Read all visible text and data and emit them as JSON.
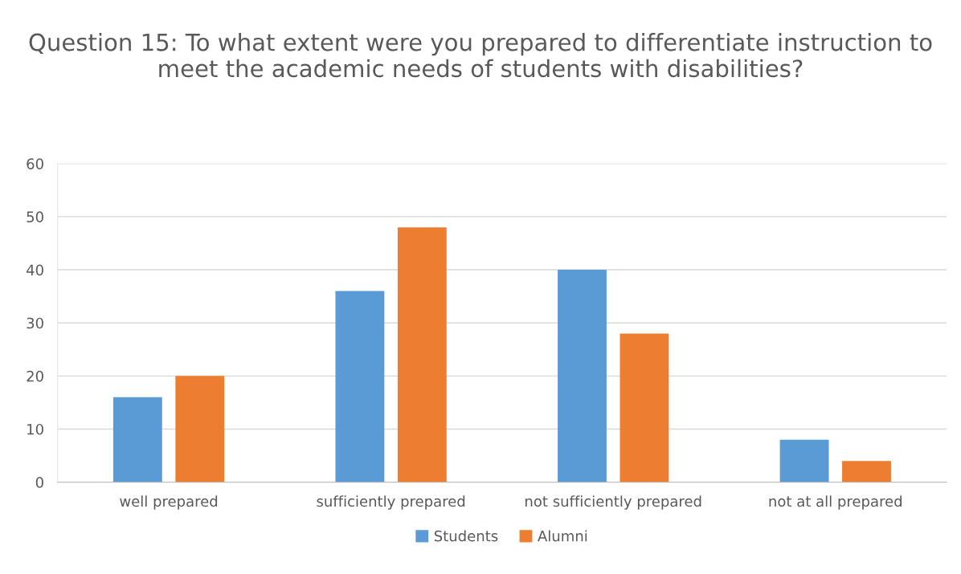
{
  "chart_data": {
    "type": "bar",
    "title": "Question 15: To what extent were you prepared to differentiate instruction to meet the academic needs of students with disabilities?",
    "categories": [
      "well prepared",
      "sufficiently prepared",
      "not sufficiently prepared",
      "not at all prepared"
    ],
    "series": [
      {
        "name": "Students",
        "color": "#5b9bd5",
        "values": [
          16,
          36,
          40,
          8
        ]
      },
      {
        "name": "Alumni",
        "color": "#ed7d31",
        "values": [
          20,
          48,
          28,
          4
        ]
      }
    ],
    "ylim": [
      0,
      60
    ],
    "yticks": [
      0,
      10,
      20,
      30,
      40,
      50,
      60
    ],
    "grid": "y",
    "legend": "bottom"
  }
}
